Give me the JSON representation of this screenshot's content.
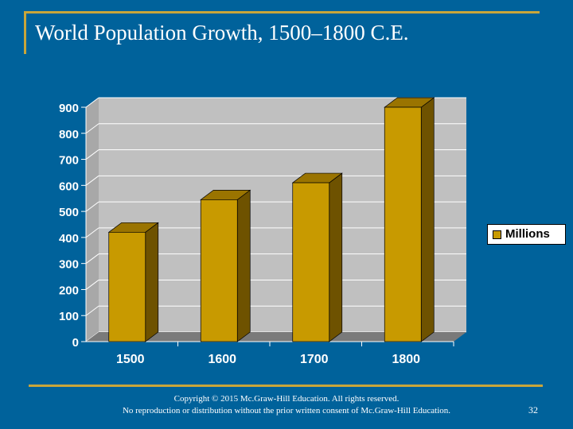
{
  "slide": {
    "title": "World Population Growth, 1500–1800 C.E.",
    "copyright_line1": "Copyright © 2015 Mc.Graw-Hill Education. All rights reserved.",
    "copyright_line2": "No reproduction or distribution without the prior written consent of Mc.Graw-Hill Education.",
    "page_number": "32"
  },
  "colors": {
    "background": "#00629b",
    "accent_rule": "#c9a63a",
    "bar_front": "#c89a00",
    "bar_side": "#6e5200",
    "bar_top": "#9a7400",
    "plot_wall": "#c0c0c0",
    "plot_floor": "#7a7a7a"
  },
  "chart_data": {
    "type": "bar",
    "categories": [
      "1500",
      "1600",
      "1700",
      "1800"
    ],
    "series": [
      {
        "name": "Millions",
        "values": [
          420,
          545,
          610,
          900
        ]
      }
    ],
    "yticks": [
      "0",
      "100",
      "200",
      "300",
      "400",
      "500",
      "600",
      "700",
      "800",
      "900"
    ],
    "ylim": [
      0,
      900
    ],
    "grid": true,
    "legend": "right",
    "style": "3d"
  }
}
